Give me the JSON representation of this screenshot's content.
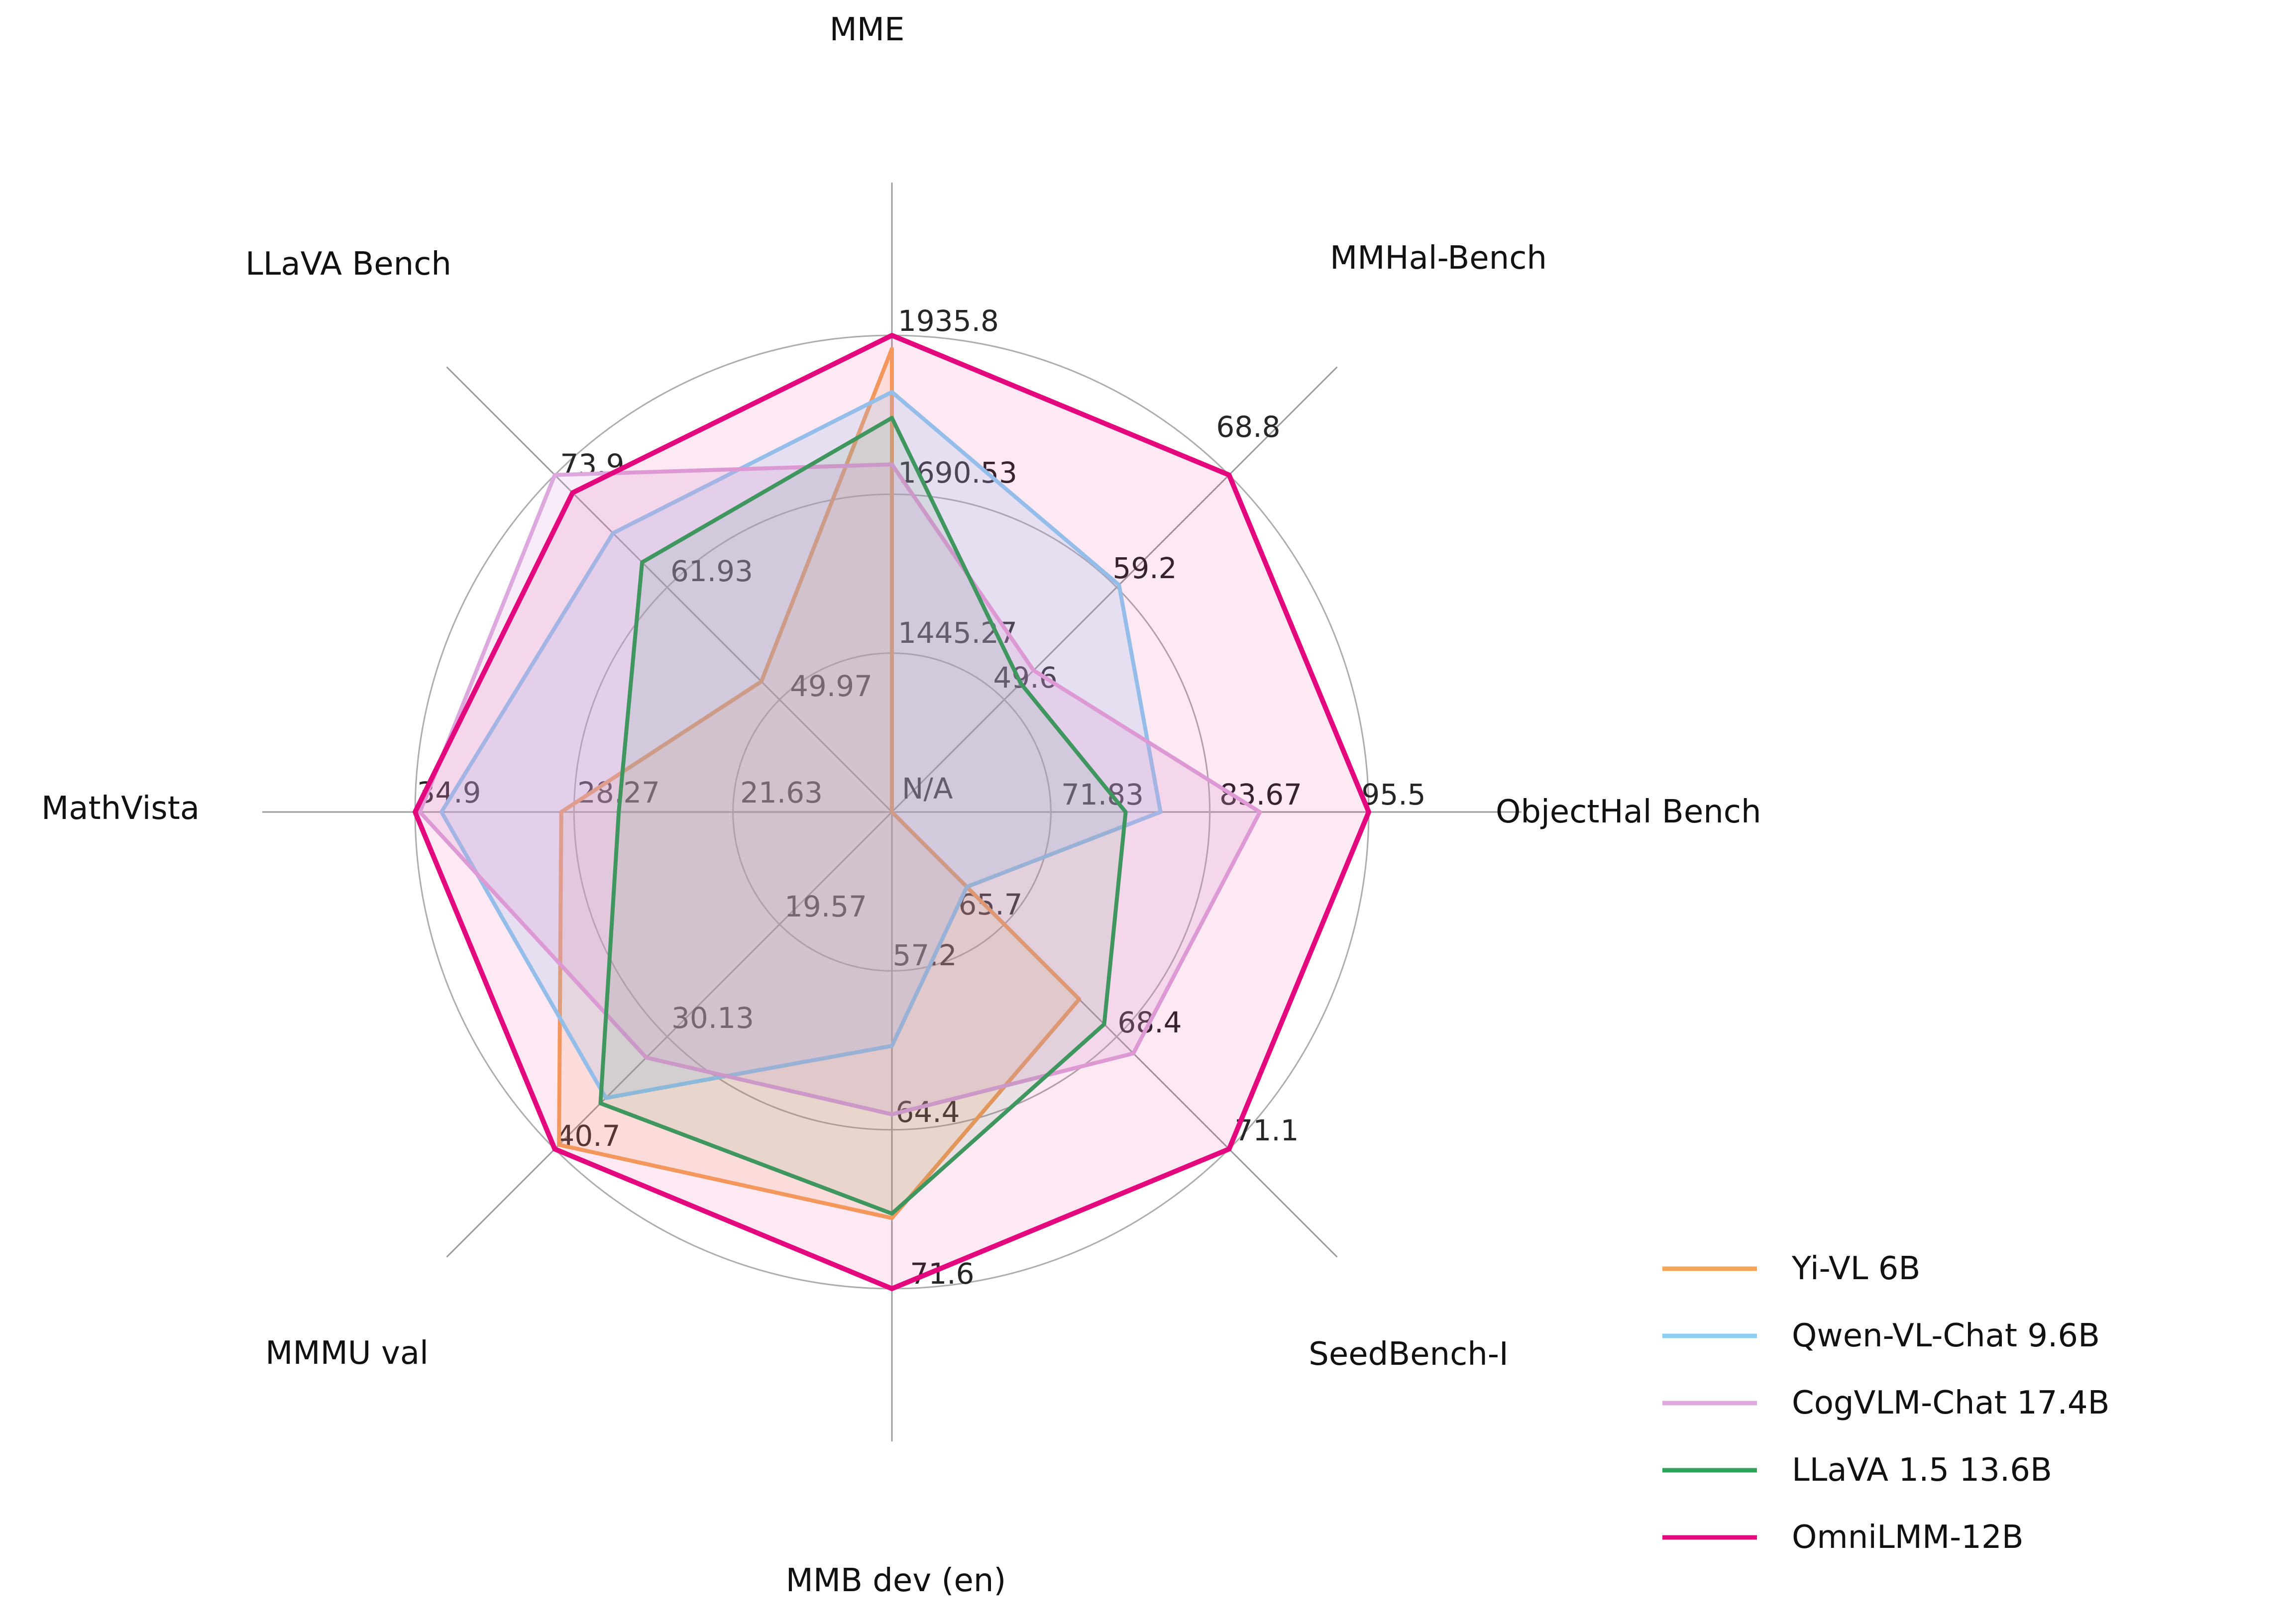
{
  "chart_data": {
    "type": "radar",
    "title": "",
    "center_label": "N/A",
    "grid": "3 concentric circular gridlines, 8 radial spokes, grid on",
    "legend_position": "bottom-right",
    "axes": [
      {
        "label": "MME",
        "min": 1200.0,
        "max": 1935.8,
        "ticks": [
          "1445.27",
          "1690.53",
          "1935.8"
        ]
      },
      {
        "label": "MMHal-Bench",
        "min": 40.0,
        "max": 68.8,
        "ticks": [
          "49.6",
          "59.2",
          "68.8"
        ]
      },
      {
        "label": "ObjectHal Bench",
        "min": 60.0,
        "max": 95.5,
        "ticks": [
          "71.83",
          "83.67",
          "95.5"
        ]
      },
      {
        "label": "SeedBench-I",
        "min": 63.0,
        "max": 71.1,
        "ticks": [
          "65.7",
          "68.4",
          "71.1"
        ]
      },
      {
        "label": "MMB dev (en)",
        "min": 50.0,
        "max": 71.6,
        "ticks": [
          "57.2",
          "64.4",
          "71.6"
        ]
      },
      {
        "label": "MMMU val",
        "min": 9.0,
        "max": 40.7,
        "ticks": [
          "19.57",
          "30.13",
          "40.7"
        ]
      },
      {
        "label": "MathVista",
        "min": 15.0,
        "max": 34.9,
        "ticks": [
          "21.63",
          "28.27",
          "34.9"
        ]
      },
      {
        "label": "LLaVA Bench",
        "min": 38.0,
        "max": 73.9,
        "ticks": [
          "49.97",
          "61.93",
          "73.9"
        ]
      }
    ],
    "series": [
      {
        "name": "Yi-VL 6B",
        "color": "#F5A55A",
        "values": [
          1915.1,
          null,
          null,
          67.5,
          68.4,
          40.3,
          28.8,
          51.9
        ]
      },
      {
        "name": "Qwen-VL-Chat 9.6B",
        "color": "#8DCFF4",
        "values": [
          1848.3,
          59.4,
          80.0,
          64.8,
          60.6,
          35.9,
          33.8,
          67.7
        ]
      },
      {
        "name": "CogVLM-Chat 17.4B",
        "color": "#DCA8DD",
        "values": [
          1736.6,
          52.1,
          87.4,
          68.8,
          63.7,
          32.1,
          34.7,
          73.9
        ]
      },
      {
        "name": "LLaVA 1.5 13.6B",
        "color": "#2FA45C",
        "values": [
          1808.4,
          51.0,
          77.4,
          68.1,
          68.2,
          36.4,
          26.4,
          64.6
        ]
      },
      {
        "name": "OmniLMM-12B",
        "color": "#E4087E",
        "values": [
          1935.8,
          68.8,
          95.5,
          71.1,
          71.6,
          40.7,
          34.9,
          72.0
        ]
      }
    ],
    "colors": {
      "grid_circle": "#ADADAD",
      "spoke": "#9C9C9C",
      "tick_text": "#262626",
      "title_text": "#111111",
      "legend_text": "#111111",
      "background": "#FFFFFF"
    }
  }
}
